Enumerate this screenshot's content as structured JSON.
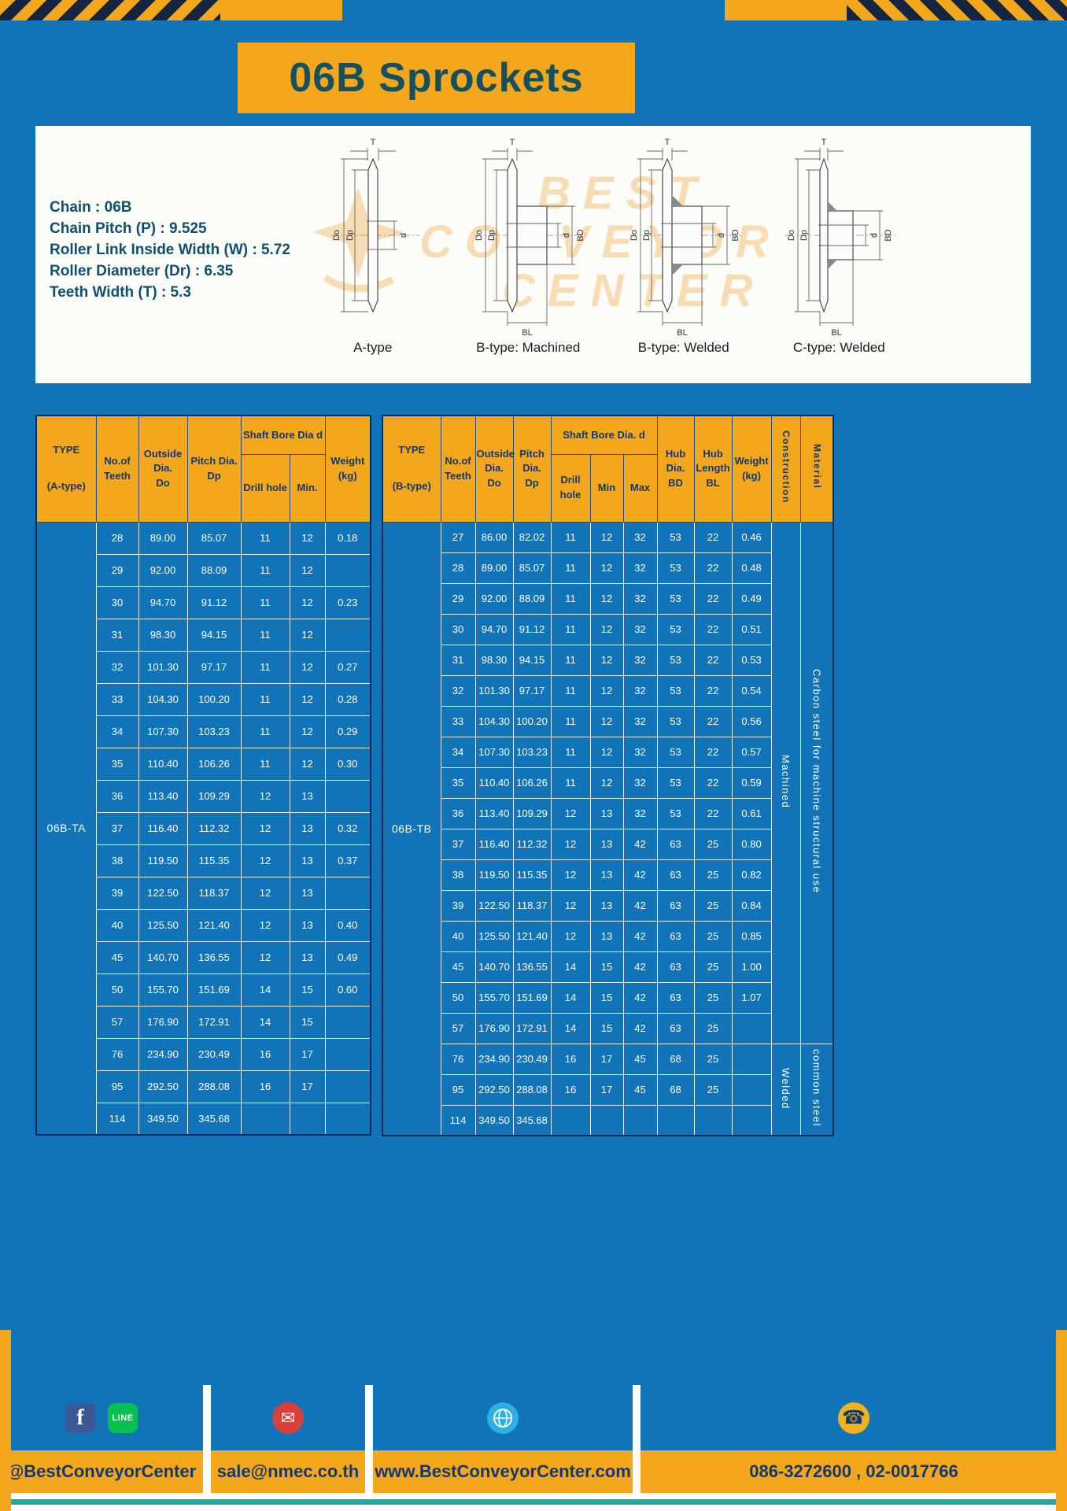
{
  "title": "06B Sprockets",
  "colors": {
    "page_blue": "#1173b8",
    "accent_yellow": "#f2a71d",
    "header_navy": "#14386b",
    "title_teal": "#14505f",
    "footer_teal_line": "#28a7a0"
  },
  "specs": {
    "lines": [
      "Chain  : 06B",
      "Chain Pitch (P)  :  9.525",
      "Roller Link Inside Width (W)  :  5.72",
      "Roller Diameter (Dr)  :  6.35",
      "Teeth Width (T)  :  5.3"
    ]
  },
  "diagrams": {
    "watermark": [
      "BEST",
      "CONVEYOR",
      "CENTER"
    ],
    "dim_labels": {
      "T": "T",
      "Do": "Do",
      "Dp": "Dp",
      "d": "d",
      "BD": "BD",
      "BL": "BL"
    },
    "captions": [
      "A-type",
      "B-type: Machined",
      "B-type: Welded",
      "C-type: Welded"
    ]
  },
  "tableA": {
    "type_value": "06B-TA",
    "headers": {
      "type": [
        "TYPE",
        "(A-type)"
      ],
      "teeth": [
        "No.of",
        "Teeth"
      ],
      "outside": [
        "Outside",
        "Dia.",
        "Do"
      ],
      "pitch": [
        "Pitch Dia.",
        "Dp"
      ],
      "shaft_group": "Shaft Bore Dia d",
      "drill": "Drill hole",
      "min": "Min.",
      "weight": [
        "Weight",
        "(kg)"
      ]
    },
    "rows": [
      [
        "28",
        "89.00",
        "85.07",
        "11",
        "12",
        "0.18"
      ],
      [
        "29",
        "92.00",
        "88.09",
        "11",
        "12",
        ""
      ],
      [
        "30",
        "94.70",
        "91.12",
        "11",
        "12",
        "0.23"
      ],
      [
        "31",
        "98.30",
        "94.15",
        "11",
        "12",
        ""
      ],
      [
        "32",
        "101.30",
        "97.17",
        "11",
        "12",
        "0.27"
      ],
      [
        "33",
        "104.30",
        "100.20",
        "11",
        "12",
        "0.28"
      ],
      [
        "34",
        "107.30",
        "103.23",
        "11",
        "12",
        "0.29"
      ],
      [
        "35",
        "110.40",
        "106.26",
        "11",
        "12",
        "0.30"
      ],
      [
        "36",
        "113.40",
        "109.29",
        "12",
        "13",
        ""
      ],
      [
        "37",
        "116.40",
        "112.32",
        "12",
        "13",
        "0.32"
      ],
      [
        "38",
        "119.50",
        "115.35",
        "12",
        "13",
        "0.37"
      ],
      [
        "39",
        "122.50",
        "118.37",
        "12",
        "13",
        ""
      ],
      [
        "40",
        "125.50",
        "121.40",
        "12",
        "13",
        "0.40"
      ],
      [
        "45",
        "140.70",
        "136.55",
        "12",
        "13",
        "0.49"
      ],
      [
        "50",
        "155.70",
        "151.69",
        "14",
        "15",
        "0.60"
      ],
      [
        "57",
        "176.90",
        "172.91",
        "14",
        "15",
        ""
      ],
      [
        "76",
        "234.90",
        "230.49",
        "16",
        "17",
        ""
      ],
      [
        "95",
        "292.50",
        "288.08",
        "16",
        "17",
        ""
      ],
      [
        "114",
        "349.50",
        "345.68",
        "",
        "",
        ""
      ]
    ]
  },
  "tableB": {
    "type_value": "06B-TB",
    "headers": {
      "type": [
        "TYPE",
        "(B-type)"
      ],
      "teeth": [
        "No.of",
        "Teeth"
      ],
      "outside": [
        "Outside",
        "Dia.",
        "Do"
      ],
      "pitch": [
        "Pitch",
        "Dia.",
        "Dp"
      ],
      "shaft_group": "Shaft Bore Dia. d",
      "drill": "Drill hole",
      "min": "Min",
      "max": "Max",
      "hub_dia": [
        "Hub",
        "Dia.",
        "BD"
      ],
      "hub_len": [
        "Hub",
        "Length",
        "BL"
      ],
      "weight": [
        "Weight",
        "(kg)"
      ],
      "construction": "Construction",
      "material": "Material"
    },
    "rows": [
      [
        "27",
        "86.00",
        "82.02",
        "11",
        "12",
        "32",
        "53",
        "22",
        "0.46"
      ],
      [
        "28",
        "89.00",
        "85.07",
        "11",
        "12",
        "32",
        "53",
        "22",
        "0.48"
      ],
      [
        "29",
        "92.00",
        "88.09",
        "11",
        "12",
        "32",
        "53",
        "22",
        "0.49"
      ],
      [
        "30",
        "94.70",
        "91.12",
        "11",
        "12",
        "32",
        "53",
        "22",
        "0.51"
      ],
      [
        "31",
        "98.30",
        "94.15",
        "11",
        "12",
        "32",
        "53",
        "22",
        "0.53"
      ],
      [
        "32",
        "101.30",
        "97.17",
        "11",
        "12",
        "32",
        "53",
        "22",
        "0.54"
      ],
      [
        "33",
        "104.30",
        "100.20",
        "11",
        "12",
        "32",
        "53",
        "22",
        "0.56"
      ],
      [
        "34",
        "107.30",
        "103.23",
        "11",
        "12",
        "32",
        "53",
        "22",
        "0.57"
      ],
      [
        "35",
        "110.40",
        "106.26",
        "11",
        "12",
        "32",
        "53",
        "22",
        "0.59"
      ],
      [
        "36",
        "113.40",
        "109.29",
        "12",
        "13",
        "32",
        "53",
        "22",
        "0.61"
      ],
      [
        "37",
        "116.40",
        "112.32",
        "12",
        "13",
        "42",
        "63",
        "25",
        "0.80"
      ],
      [
        "38",
        "119.50",
        "115.35",
        "12",
        "13",
        "42",
        "63",
        "25",
        "0.82"
      ],
      [
        "39",
        "122.50",
        "118.37",
        "12",
        "13",
        "42",
        "63",
        "25",
        "0.84"
      ],
      [
        "40",
        "125.50",
        "121.40",
        "12",
        "13",
        "42",
        "63",
        "25",
        "0.85"
      ],
      [
        "45",
        "140.70",
        "136.55",
        "14",
        "15",
        "42",
        "63",
        "25",
        "1.00"
      ],
      [
        "50",
        "155.70",
        "151.69",
        "14",
        "15",
        "42",
        "63",
        "25",
        "1.07"
      ],
      [
        "57",
        "176.90",
        "172.91",
        "14",
        "15",
        "42",
        "63",
        "25",
        ""
      ],
      [
        "76",
        "234.90",
        "230.49",
        "16",
        "17",
        "45",
        "68",
        "25",
        ""
      ],
      [
        "95",
        "292.50",
        "288.08",
        "16",
        "17",
        "45",
        "68",
        "25",
        ""
      ],
      [
        "114",
        "349.50",
        "345.68",
        "",
        "",
        "",
        "",
        "",
        ""
      ]
    ],
    "construction_spans": [
      {
        "label": "Machined",
        "rows": 17
      },
      {
        "label": "Welded",
        "rows": 3
      }
    ],
    "material_spans": [
      {
        "label": "Carbon steel for machine structural use",
        "rows": 17
      },
      {
        "label": "common steel",
        "rows": 3
      }
    ]
  },
  "footer": {
    "handle": "@BestConveyorCenter",
    "email": "sale@nmec.co.th",
    "website": "www.BestConveyorCenter.com",
    "phones": "086-3272600 , 02-0017766",
    "icons": {
      "facebook_glyph": "f",
      "line_glyph": "LINE",
      "email_glyph": "✉",
      "phone_glyph": "☎"
    }
  }
}
